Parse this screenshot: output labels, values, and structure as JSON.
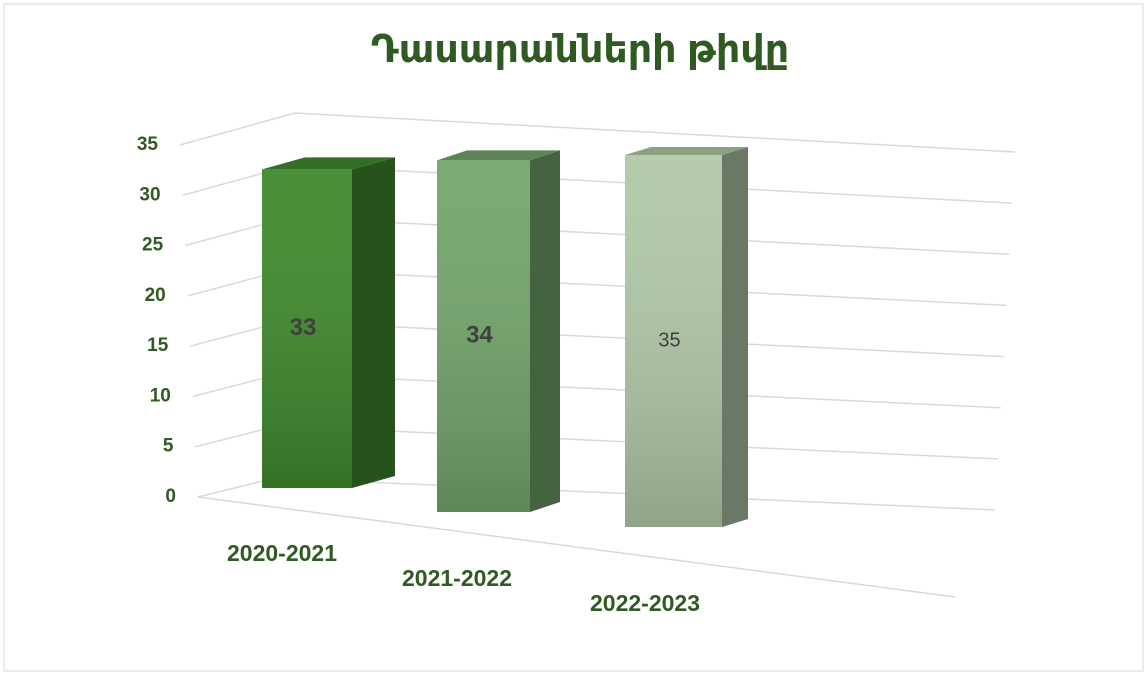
{
  "chart_data": {
    "type": "bar3d",
    "title": "Դասարանների թիվը",
    "categories": [
      "2020-2021",
      "2021-2022",
      "2022-2023"
    ],
    "values": [
      33,
      34,
      35
    ],
    "colors": [
      "#3f8a2e",
      "#73a56b",
      "#b0c8a8"
    ],
    "ylim": [
      0,
      35
    ],
    "yticks": [
      0,
      5,
      10,
      15,
      20,
      25,
      30,
      35
    ],
    "grid": true
  }
}
